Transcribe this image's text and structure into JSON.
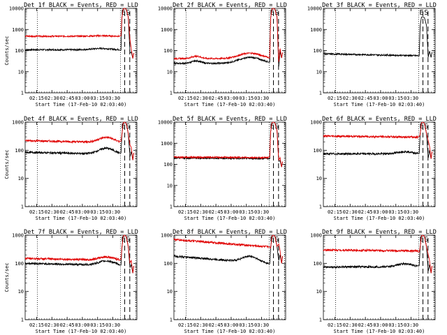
{
  "figure": {
    "kind": "detector count-rate time series grid",
    "rows": 3,
    "cols": 3
  },
  "chart_data": [
    {
      "type": "line",
      "title": "Det 1f BLACK = Events, RED = LLD",
      "ylabel": "Counts/sec",
      "xlabel": "Start Time (17-Feb-10 02:03:40)",
      "yscale": "log",
      "ylim": [
        1,
        10000
      ],
      "yticks": [
        "1",
        "10",
        "100",
        "1000",
        "10000"
      ],
      "xticks": [
        "02:15",
        "02:30",
        "02:45",
        "03:00",
        "03:15",
        "03:30"
      ],
      "xlim_minutes": [
        0,
        110
      ],
      "dotted_marks_minutes": [
        12,
        93.8,
        109
      ],
      "dashed_marks_minutes": [
        98,
        103
      ],
      "flags": [
        "E",
        "S"
      ],
      "colors": {
        "events": "#000000",
        "lld": "#e00000"
      },
      "series": [
        {
          "name": "Events",
          "color": "#000000",
          "level": 110,
          "hump": [
            75,
            1.15,
            12
          ],
          "peak": 10000
        },
        {
          "name": "LLD",
          "color": "#e00000",
          "level": 480,
          "hump": [
            75,
            1.05,
            12
          ],
          "peak": 10000
        }
      ],
      "end_spike": 85
    },
    {
      "type": "line",
      "title": "Det 2f BLACK = Events, RED = LLD",
      "ylabel": "",
      "xlabel": "Start Time (17-Feb-10 02:03:40)",
      "yscale": "log",
      "ylim": [
        1,
        10000
      ],
      "yticks": [
        "1",
        "10",
        "100",
        "1000",
        "10000"
      ],
      "xticks": [
        "02:15",
        "02:30",
        "02:45",
        "03:00",
        "03:15",
        "03:30"
      ],
      "xlim_minutes": [
        0,
        110
      ],
      "dotted_marks_minutes": [
        12,
        93.8,
        109
      ],
      "dashed_marks_minutes": [
        98,
        103
      ],
      "flags": [
        "E",
        "S"
      ],
      "colors": {
        "events": "#000000",
        "lld": "#e00000"
      },
      "series": [
        {
          "name": "Events",
          "color": "#000000",
          "level": 25,
          "hump": [
            75,
            1.9,
            14
          ],
          "bump": [
            22,
            1.3,
            6
          ],
          "peak": 10000
        },
        {
          "name": "LLD",
          "color": "#e00000",
          "level": 42,
          "hump": [
            75,
            1.8,
            14
          ],
          "bump": [
            22,
            1.3,
            6
          ],
          "peak": 10000
        }
      ],
      "end_spike": 90
    },
    {
      "type": "line",
      "title": "Det 3f BLACK = Events, RED = LLD",
      "ylabel": "",
      "xlabel": "Start Time (17-Feb-10 02:03:40)",
      "yscale": "log",
      "ylim": [
        1,
        10000
      ],
      "yticks": [
        "1",
        "10",
        "100",
        "1000",
        "10000"
      ],
      "xticks": [
        "02:15",
        "02:30",
        "02:45",
        "03:00",
        "03:15",
        "03:30"
      ],
      "xlim_minutes": [
        0,
        110
      ],
      "dotted_marks_minutes": [
        12,
        93.8,
        109
      ],
      "dashed_marks_minutes": [
        98,
        103
      ],
      "flags": [
        "E",
        "S"
      ],
      "colors": {
        "events": "#000000",
        "lld": "#e00000"
      },
      "series": [
        {
          "name": "Events",
          "color": "#000000",
          "level": 70,
          "slope": 0.82,
          "peak": 4000
        }
      ],
      "end_spike": 95
    },
    {
      "type": "line",
      "title": "Det 4f BLACK = Events, RED = LLD",
      "ylabel": "Counts/sec",
      "xlabel": "Start Time (17-Feb-10 02:03:40)",
      "yscale": "log",
      "ylim": [
        1,
        1000
      ],
      "yticks": [
        "1",
        "10",
        "100",
        "1000"
      ],
      "xticks": [
        "02:15",
        "02:30",
        "02:45",
        "03:00",
        "03:15",
        "03:30"
      ],
      "xlim_minutes": [
        0,
        110
      ],
      "dotted_marks_minutes": [
        12,
        93.8,
        109
      ],
      "dashed_marks_minutes": [
        98,
        103
      ],
      "flags": [
        "E",
        "S"
      ],
      "colors": {
        "events": "#000000",
        "lld": "#e00000"
      },
      "series": [
        {
          "name": "Events",
          "color": "#000000",
          "level": 85,
          "slope": 0.85,
          "hump": [
            80,
            1.6,
            10
          ],
          "peak": 1000
        },
        {
          "name": "LLD",
          "color": "#e00000",
          "level": 220,
          "slope": 0.85,
          "hump": [
            80,
            1.5,
            10
          ],
          "peak": 1000
        }
      ],
      "end_spike": 90
    },
    {
      "type": "line",
      "title": "Det 5f BLACK = Events, RED = LLD",
      "ylabel": "",
      "xlabel": "Start Time (17-Feb-10 02:03:40)",
      "yscale": "log",
      "ylim": [
        1,
        10000
      ],
      "yticks": [
        "1",
        "10",
        "100",
        "1000",
        "10000"
      ],
      "xticks": [
        "02:15",
        "02:30",
        "02:45",
        "03:00",
        "03:15",
        "03:30"
      ],
      "xlim_minutes": [
        0,
        110
      ],
      "dotted_marks_minutes": [
        12,
        93.8,
        109
      ],
      "dashed_marks_minutes": [
        98,
        103
      ],
      "flags": [
        "E",
        "S"
      ],
      "colors": {
        "events": "#000000",
        "lld": "#e00000"
      },
      "series": [
        {
          "name": "Events",
          "color": "#000000",
          "level": 200,
          "slope": 0.95,
          "peak": 10000
        },
        {
          "name": "LLD",
          "color": "#e00000",
          "level": 220,
          "slope": 0.95,
          "peak": 10000
        }
      ],
      "end_spike": 150
    },
    {
      "type": "line",
      "title": "Det 6f BLACK = Events, RED = LLD",
      "ylabel": "",
      "xlabel": "Start Time (17-Feb-10 02:03:40)",
      "yscale": "log",
      "ylim": [
        1,
        1000
      ],
      "yticks": [
        "1",
        "10",
        "100",
        "1000"
      ],
      "xticks": [
        "02:15",
        "02:30",
        "02:45",
        "03:00",
        "03:15",
        "03:30"
      ],
      "xlim_minutes": [
        0,
        110
      ],
      "dotted_marks_minutes": [
        12,
        93.8,
        109
      ],
      "dashed_marks_minutes": [
        98,
        103
      ],
      "flags": [
        "E",
        "S"
      ],
      "colors": {
        "events": "#000000",
        "lld": "#e00000"
      },
      "series": [
        {
          "name": "Events",
          "color": "#000000",
          "level": 75,
          "hump": [
            80,
            1.2,
            10
          ],
          "peak": 1000
        },
        {
          "name": "LLD",
          "color": "#e00000",
          "level": 320,
          "slope": 0.92,
          "peak": 1000
        }
      ],
      "end_spike": 100
    },
    {
      "type": "line",
      "title": "Det 7f BLACK = Events, RED = LLD",
      "ylabel": "Counts/sec",
      "xlabel": "Start Time (17-Feb-10 02:03:40)",
      "yscale": "log",
      "ylim": [
        1,
        1000
      ],
      "yticks": [
        "1",
        "10",
        "100",
        "1000"
      ],
      "xticks": [
        "02:15",
        "02:30",
        "02:45",
        "03:00",
        "03:15",
        "03:30"
      ],
      "xlim_minutes": [
        0,
        110
      ],
      "dotted_marks_minutes": [
        12,
        93.8,
        109
      ],
      "dashed_marks_minutes": [
        98,
        103
      ],
      "flags": [
        "E",
        "S"
      ],
      "colors": {
        "events": "#000000",
        "lld": "#e00000"
      },
      "series": [
        {
          "name": "Events",
          "color": "#000000",
          "level": 100,
          "slope": 0.85,
          "hump": [
            80,
            1.4,
            10
          ],
          "peak": 1000
        },
        {
          "name": "LLD",
          "color": "#e00000",
          "level": 150,
          "slope": 0.85,
          "hump": [
            80,
            1.3,
            10
          ],
          "peak": 1000
        }
      ],
      "end_spike": 90
    },
    {
      "type": "line",
      "title": "Det 8f BLACK = Events, RED = LLD",
      "ylabel": "",
      "xlabel": "Start Time (17-Feb-10 02:03:40)",
      "yscale": "log",
      "ylim": [
        1,
        1000
      ],
      "yticks": [
        "1",
        "10",
        "100",
        "1000"
      ],
      "xticks": [
        "02:15",
        "02:30",
        "02:45",
        "03:00",
        "03:15",
        "03:30"
      ],
      "xlim_minutes": [
        0,
        110
      ],
      "dotted_marks_minutes": [
        12,
        93.8,
        109
      ],
      "dashed_marks_minutes": [
        98,
        103
      ],
      "flags": [
        "E",
        "S"
      ],
      "colors": {
        "events": "#000000",
        "lld": "#e00000"
      },
      "series": [
        {
          "name": "Events",
          "color": "#000000",
          "level": 180,
          "slope": 0.55,
          "hump": [
            75,
            1.6,
            10
          ],
          "peak": 1000
        },
        {
          "name": "LLD",
          "color": "#e00000",
          "level": 700,
          "slope": 0.55,
          "peak": 1000
        }
      ],
      "end_spike": 200
    },
    {
      "type": "line",
      "title": "Det 9f BLACK = Events, RED = LLD",
      "ylabel": "",
      "xlabel": "Start Time (17-Feb-10 02:03:40)",
      "yscale": "log",
      "ylim": [
        1,
        1000
      ],
      "yticks": [
        "1",
        "10",
        "100",
        "1000"
      ],
      "xticks": [
        "02:15",
        "02:30",
        "02:45",
        "03:00",
        "03:15",
        "03:30"
      ],
      "xlim_minutes": [
        0,
        110
      ],
      "dotted_marks_minutes": [
        12,
        93.8,
        109
      ],
      "dashed_marks_minutes": [
        98,
        103
      ],
      "flags": [
        "E",
        "S"
      ],
      "colors": {
        "events": "#000000",
        "lld": "#e00000"
      },
      "series": [
        {
          "name": "Events",
          "color": "#000000",
          "level": 75,
          "hump": [
            80,
            1.3,
            10
          ],
          "peak": 1000
        },
        {
          "name": "LLD",
          "color": "#e00000",
          "level": 300,
          "slope": 0.92,
          "peak": 1000
        }
      ],
      "end_spike": 90
    }
  ]
}
